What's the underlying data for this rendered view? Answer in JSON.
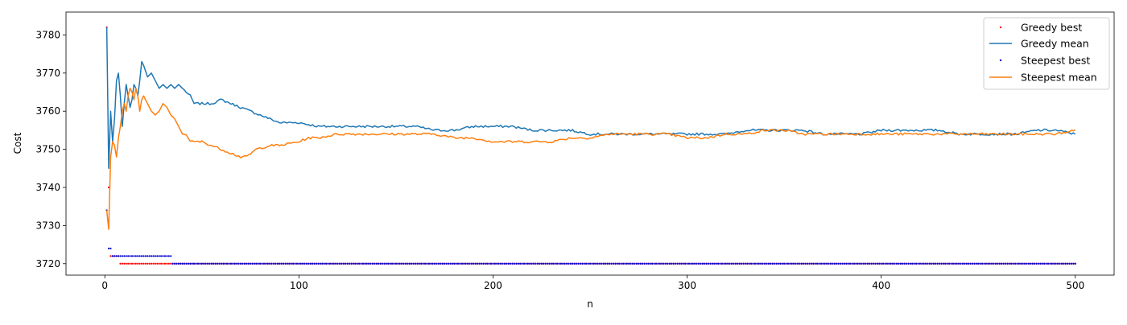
{
  "chart_data": {
    "type": "line",
    "title": "",
    "xlabel": "n",
    "ylabel": "Cost",
    "xlim": [
      -20,
      520
    ],
    "ylim": [
      3717,
      3786
    ],
    "x_ticks": [
      0,
      100,
      200,
      300,
      400,
      500
    ],
    "y_ticks": [
      3720,
      3730,
      3740,
      3750,
      3760,
      3770,
      3780
    ],
    "grid": false,
    "legend_position": "top-right",
    "n_points": 500,
    "series": [
      {
        "name": "Greedy best",
        "kind": "points",
        "color": "#ff0000",
        "segments": [
          {
            "from": 1,
            "to": 1,
            "value": 3782
          },
          {
            "from": 2,
            "to": 2,
            "value": 3740
          },
          {
            "from": 3,
            "to": 7,
            "value": 3722
          },
          {
            "from": 8,
            "to": 34,
            "value": 3720
          },
          {
            "from": 35,
            "to": 500,
            "value": 3720
          }
        ]
      },
      {
        "name": "Greedy mean",
        "kind": "line",
        "color": "#1f77b4",
        "anchors": [
          [
            1,
            3782
          ],
          [
            2,
            3745
          ],
          [
            3,
            3760
          ],
          [
            4,
            3752
          ],
          [
            5,
            3758
          ],
          [
            6,
            3768
          ],
          [
            7,
            3770
          ],
          [
            8,
            3764
          ],
          [
            9,
            3756
          ],
          [
            10,
            3762
          ],
          [
            11,
            3767
          ],
          [
            12,
            3764
          ],
          [
            13,
            3761
          ],
          [
            14,
            3763
          ],
          [
            15,
            3767
          ],
          [
            16,
            3766
          ],
          [
            17,
            3764
          ],
          [
            18,
            3768
          ],
          [
            19,
            3773
          ],
          [
            20,
            3772
          ],
          [
            22,
            3769
          ],
          [
            24,
            3770
          ],
          [
            26,
            3768
          ],
          [
            28,
            3766
          ],
          [
            30,
            3767
          ],
          [
            32,
            3766
          ],
          [
            34,
            3767
          ],
          [
            36,
            3766
          ],
          [
            38,
            3767
          ],
          [
            40,
            3766
          ],
          [
            42,
            3765
          ],
          [
            44,
            3764
          ],
          [
            46,
            3762
          ],
          [
            50,
            3762
          ],
          [
            55,
            3762
          ],
          [
            60,
            3763
          ],
          [
            65,
            3762
          ],
          [
            70,
            3761
          ],
          [
            75,
            3760
          ],
          [
            80,
            3759
          ],
          [
            85,
            3758
          ],
          [
            90,
            3757
          ],
          [
            100,
            3757
          ],
          [
            110,
            3756
          ],
          [
            120,
            3756
          ],
          [
            130,
            3756
          ],
          [
            140,
            3756
          ],
          [
            150,
            3756
          ],
          [
            160,
            3756
          ],
          [
            170,
            3755
          ],
          [
            180,
            3755
          ],
          [
            190,
            3756
          ],
          [
            200,
            3756
          ],
          [
            210,
            3756
          ],
          [
            220,
            3755
          ],
          [
            230,
            3755
          ],
          [
            240,
            3755
          ],
          [
            250,
            3754
          ],
          [
            260,
            3754
          ],
          [
            270,
            3754
          ],
          [
            280,
            3754
          ],
          [
            290,
            3754
          ],
          [
            300,
            3754
          ],
          [
            310,
            3754
          ],
          [
            320,
            3754
          ],
          [
            330,
            3755
          ],
          [
            340,
            3755
          ],
          [
            350,
            3755
          ],
          [
            360,
            3755
          ],
          [
            370,
            3754
          ],
          [
            380,
            3754
          ],
          [
            390,
            3754
          ],
          [
            400,
            3755
          ],
          [
            410,
            3755
          ],
          [
            420,
            3755
          ],
          [
            430,
            3755
          ],
          [
            440,
            3754
          ],
          [
            450,
            3754
          ],
          [
            460,
            3754
          ],
          [
            470,
            3754
          ],
          [
            480,
            3755
          ],
          [
            490,
            3755
          ],
          [
            500,
            3754
          ]
        ]
      },
      {
        "name": "Steepest best",
        "kind": "points",
        "color": "#0000cc",
        "segments": [
          {
            "from": 1,
            "to": 1,
            "value": 3734
          },
          {
            "from": 2,
            "to": 3,
            "value": 3724
          },
          {
            "from": 4,
            "to": 34,
            "value": 3722
          },
          {
            "from": 35,
            "to": 500,
            "value": 3720
          }
        ]
      },
      {
        "name": "Steepest mean",
        "kind": "line",
        "color": "#ff7f0e",
        "anchors": [
          [
            1,
            3734
          ],
          [
            2,
            3729
          ],
          [
            3,
            3748
          ],
          [
            4,
            3752
          ],
          [
            5,
            3751
          ],
          [
            6,
            3748
          ],
          [
            7,
            3753
          ],
          [
            8,
            3756
          ],
          [
            9,
            3760
          ],
          [
            10,
            3762
          ],
          [
            11,
            3760
          ],
          [
            12,
            3764
          ],
          [
            13,
            3766
          ],
          [
            14,
            3765
          ],
          [
            15,
            3763
          ],
          [
            16,
            3766
          ],
          [
            17,
            3764
          ],
          [
            18,
            3760
          ],
          [
            19,
            3763
          ],
          [
            20,
            3764
          ],
          [
            22,
            3762
          ],
          [
            24,
            3760
          ],
          [
            26,
            3759
          ],
          [
            28,
            3760
          ],
          [
            30,
            3762
          ],
          [
            32,
            3761
          ],
          [
            34,
            3759
          ],
          [
            36,
            3758
          ],
          [
            38,
            3756
          ],
          [
            40,
            3754
          ],
          [
            42,
            3754
          ],
          [
            44,
            3752
          ],
          [
            46,
            3752
          ],
          [
            50,
            3752
          ],
          [
            55,
            3751
          ],
          [
            60,
            3750
          ],
          [
            65,
            3749
          ],
          [
            70,
            3748
          ],
          [
            73,
            3748
          ],
          [
            78,
            3750
          ],
          [
            85,
            3751
          ],
          [
            90,
            3751
          ],
          [
            100,
            3752
          ],
          [
            105,
            3753
          ],
          [
            110,
            3753
          ],
          [
            120,
            3754
          ],
          [
            130,
            3754
          ],
          [
            140,
            3754
          ],
          [
            150,
            3754
          ],
          [
            160,
            3754
          ],
          [
            170,
            3754
          ],
          [
            180,
            3753
          ],
          [
            190,
            3753
          ],
          [
            200,
            3752
          ],
          [
            210,
            3752
          ],
          [
            220,
            3752
          ],
          [
            230,
            3752
          ],
          [
            240,
            3753
          ],
          [
            250,
            3753
          ],
          [
            260,
            3754
          ],
          [
            270,
            3754
          ],
          [
            280,
            3754
          ],
          [
            290,
            3754
          ],
          [
            300,
            3753
          ],
          [
            310,
            3753
          ],
          [
            320,
            3754
          ],
          [
            330,
            3754
          ],
          [
            340,
            3755
          ],
          [
            350,
            3755
          ],
          [
            360,
            3754
          ],
          [
            370,
            3754
          ],
          [
            380,
            3754
          ],
          [
            390,
            3754
          ],
          [
            400,
            3754
          ],
          [
            410,
            3754
          ],
          [
            420,
            3754
          ],
          [
            430,
            3754
          ],
          [
            440,
            3754
          ],
          [
            450,
            3754
          ],
          [
            460,
            3754
          ],
          [
            470,
            3754
          ],
          [
            480,
            3754
          ],
          [
            490,
            3754
          ],
          [
            500,
            3755
          ]
        ]
      }
    ]
  }
}
